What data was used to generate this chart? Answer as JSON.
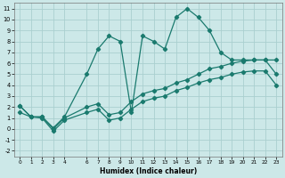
{
  "xlabel": "Humidex (Indice chaleur)",
  "bg_color": "#cce8e8",
  "grid_color": "#aacfcf",
  "line_color": "#1a7a6e",
  "xlim": [
    -0.5,
    23.5
  ],
  "ylim": [
    -2.5,
    11.5
  ],
  "xticks": [
    0,
    1,
    2,
    3,
    4,
    6,
    7,
    8,
    9,
    10,
    11,
    12,
    13,
    14,
    15,
    16,
    17,
    18,
    19,
    20,
    21,
    22,
    23
  ],
  "yticks": [
    -2,
    -1,
    0,
    1,
    2,
    3,
    4,
    5,
    6,
    7,
    8,
    9,
    10,
    11
  ],
  "line1_x": [
    0,
    1,
    2,
    3,
    4,
    6,
    7,
    8,
    9,
    10,
    11,
    12,
    13,
    14,
    15,
    16,
    17,
    18,
    19,
    20,
    21,
    22,
    23
  ],
  "line1_y": [
    2.1,
    1.1,
    1.1,
    0.1,
    1.1,
    5.0,
    7.3,
    8.5,
    8.0,
    1.5,
    8.5,
    8.0,
    7.3,
    10.2,
    11.0,
    10.2,
    9.0,
    7.0,
    6.3,
    6.3,
    6.3,
    6.3,
    5.0
  ],
  "line2_x": [
    0,
    1,
    2,
    3,
    4,
    6,
    7,
    8,
    9,
    10,
    11,
    12,
    13,
    14,
    15,
    16,
    17,
    18,
    19,
    20,
    21,
    22,
    23
  ],
  "line2_y": [
    2.1,
    1.1,
    1.1,
    0.0,
    1.0,
    2.0,
    2.3,
    1.3,
    1.5,
    2.5,
    3.2,
    3.5,
    3.7,
    4.2,
    4.5,
    5.0,
    5.5,
    5.7,
    6.0,
    6.2,
    6.3,
    6.3,
    6.3
  ],
  "line3_x": [
    0,
    1,
    2,
    3,
    4,
    6,
    7,
    8,
    9,
    10,
    11,
    12,
    13,
    14,
    15,
    16,
    17,
    18,
    19,
    20,
    21,
    22,
    23
  ],
  "line3_y": [
    1.5,
    1.1,
    1.0,
    -0.2,
    0.8,
    1.5,
    1.8,
    0.8,
    1.0,
    1.8,
    2.5,
    2.8,
    3.0,
    3.5,
    3.8,
    4.2,
    4.5,
    4.7,
    5.0,
    5.2,
    5.3,
    5.3,
    4.0
  ]
}
